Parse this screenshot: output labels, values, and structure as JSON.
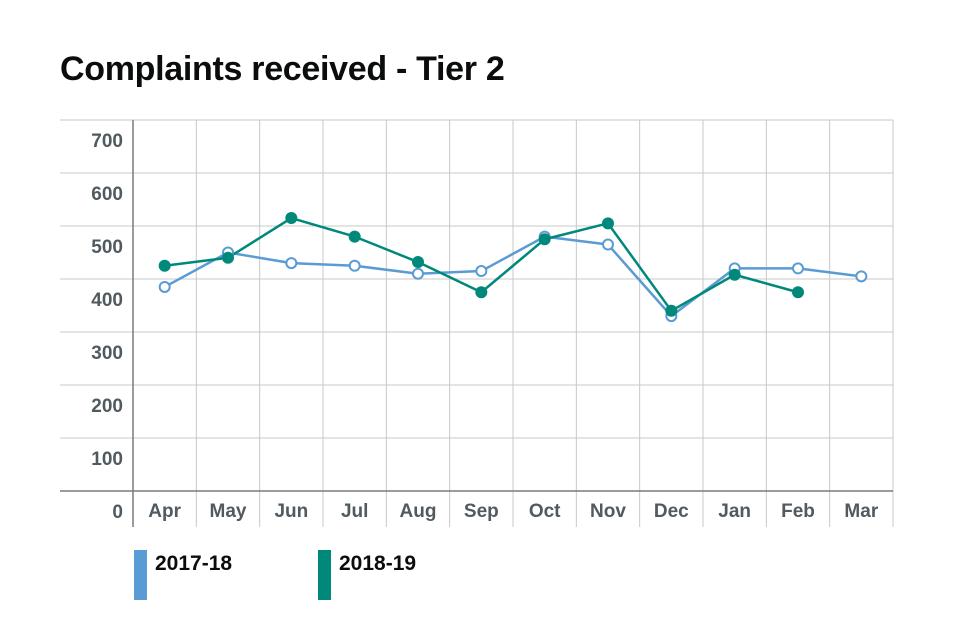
{
  "chart_data": {
    "type": "line",
    "title": "Complaints received - Tier 2",
    "xlabel": "",
    "ylabel": "",
    "categories": [
      "Apr",
      "May",
      "Jun",
      "Jul",
      "Aug",
      "Sep",
      "Oct",
      "Nov",
      "Dec",
      "Jan",
      "Feb",
      "Mar"
    ],
    "y_ticks": [
      "0",
      "100",
      "200",
      "300",
      "400",
      "500",
      "600",
      "700"
    ],
    "ylim": [
      0,
      700
    ],
    "grid": true,
    "legend_position": "bottom-left",
    "series": [
      {
        "name": "2017-18",
        "color": "#5b9bd5",
        "marker": "hollow-circle",
        "values": [
          385,
          450,
          430,
          425,
          410,
          415,
          480,
          465,
          330,
          420,
          420,
          405
        ]
      },
      {
        "name": "2018-19",
        "color": "#00897b",
        "marker": "filled-circle",
        "values": [
          425,
          440,
          515,
          480,
          432,
          375,
          475,
          505,
          340,
          408,
          375,
          null
        ]
      }
    ]
  }
}
